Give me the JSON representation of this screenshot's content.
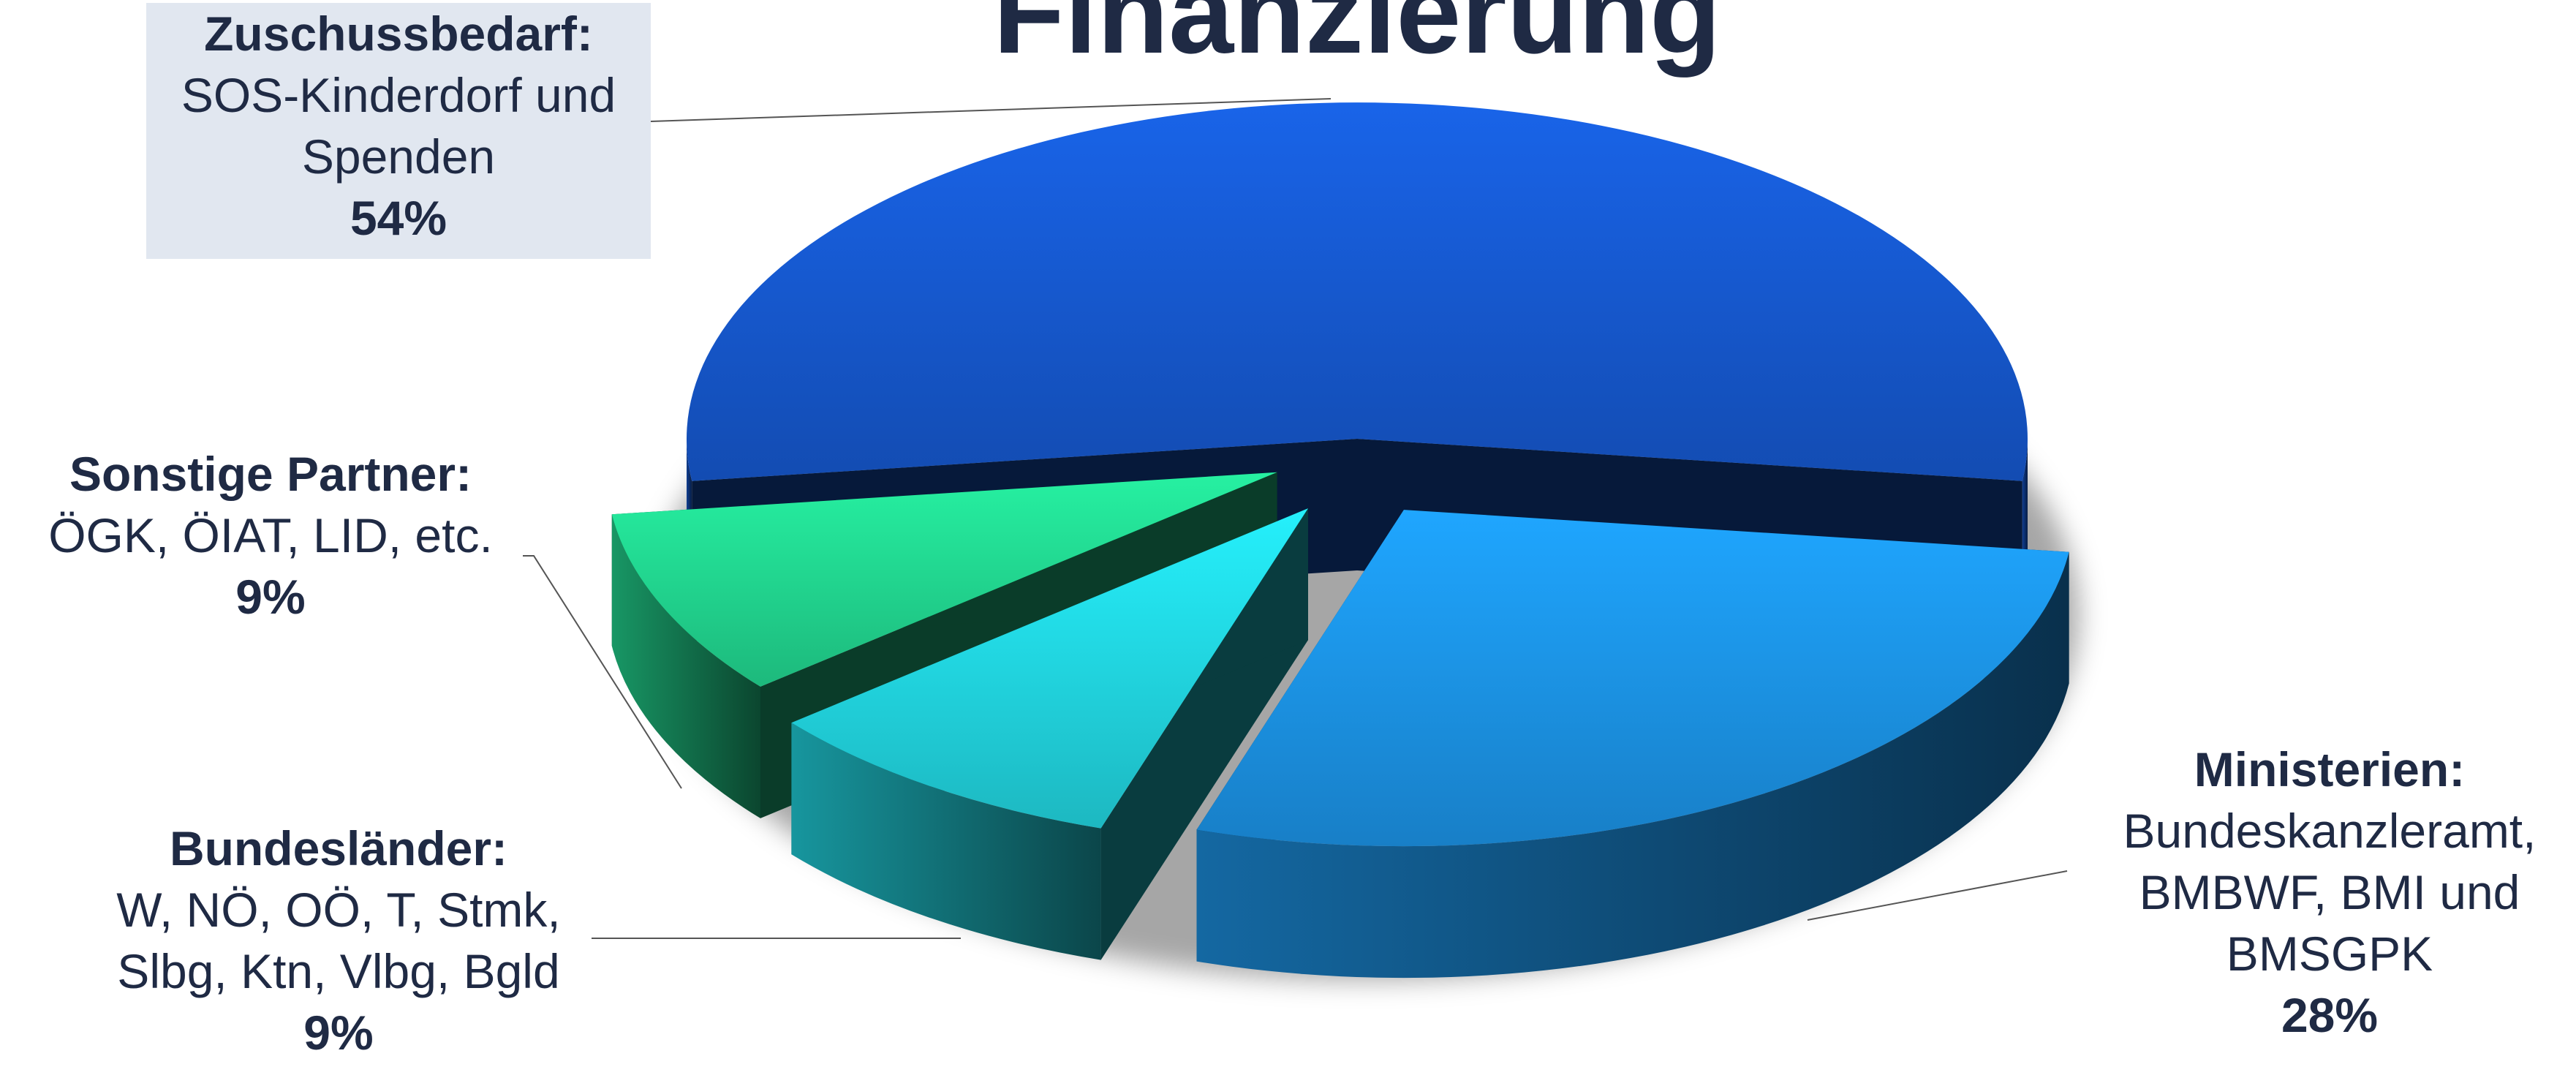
{
  "chart_data": {
    "type": "pie",
    "title": "Finanzierung",
    "categories": [
      "Zuschussbedarf:",
      "Ministerien:",
      "Bundesländer:",
      "Sonstige Partner:"
    ],
    "descriptions": [
      "SOS-Kinderdorf und Spenden",
      "Bundeskanzleramt, BMBWF, BMI und BMSGPK",
      "W, NÖ, OÖ, T, Stmk, Slbg, Ktn, Vlbg, Bgld",
      "ÖGK, ÖIAT, LID, etc."
    ],
    "values": [
      54,
      28,
      9,
      9
    ],
    "value_labels": [
      "54%",
      "28%",
      "9%",
      "9%"
    ],
    "colors": [
      "#1553c2",
      "#1a8ad8",
      "#1fc8d2",
      "#20c987"
    ]
  }
}
